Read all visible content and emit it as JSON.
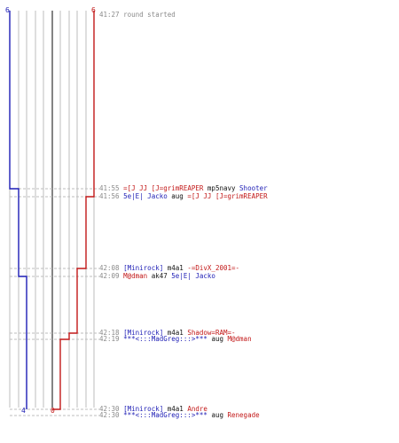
{
  "header": {
    "start_time": "41:27",
    "start_message": "round started",
    "blue_start_score": "6",
    "red_start_score": "6"
  },
  "footer": {
    "blue_end_score": "4",
    "red_end_score": "0"
  },
  "colors": {
    "blue": "#1d1db5",
    "red": "#c21818",
    "grid": "#bdbdbd",
    "time": "#8a8a8a",
    "weapon": "#111111"
  },
  "kills": [
    {
      "time": "41:55",
      "killer": "=[J JJ [J=grimREAPER",
      "weapon": "mp5navy",
      "victim": "Shooter",
      "killer_team": "red",
      "victim_team": "blue"
    },
    {
      "time": "41:56",
      "killer": "5e|E| Jacko",
      "weapon": "aug",
      "victim": "=[J JJ [J=grimREAPER",
      "killer_team": "blue",
      "victim_team": "red"
    },
    {
      "time": "42:08",
      "killer": "[Minirock]",
      "weapon": "m4a1",
      "victim": "-=DivX_2001=-",
      "killer_team": "blue",
      "victim_team": "red"
    },
    {
      "time": "42:09",
      "killer": "M@dman",
      "weapon": "ak47",
      "victim": "5e|E| Jacko",
      "killer_team": "red",
      "victim_team": "blue"
    },
    {
      "time": "42:18",
      "killer": "[Minirock]",
      "weapon": "m4a1",
      "victim": "Shadow=RAM=-",
      "killer_team": "blue",
      "victim_team": "red"
    },
    {
      "time": "42:19",
      "killer": "***<:::MadGreg:::>***",
      "weapon": "aug",
      "victim": "M@dman",
      "killer_team": "blue",
      "victim_team": "red"
    },
    {
      "time": "42:30",
      "killer": "[Minirock]",
      "weapon": "m4a1",
      "victim": "Andre",
      "killer_team": "blue",
      "victim_team": "red"
    },
    {
      "time": "42:30",
      "killer": "***<:::MadGreg:::>***",
      "weapon": "aug",
      "victim": "Renegade",
      "killer_team": "blue",
      "victim_team": "red"
    }
  ]
}
